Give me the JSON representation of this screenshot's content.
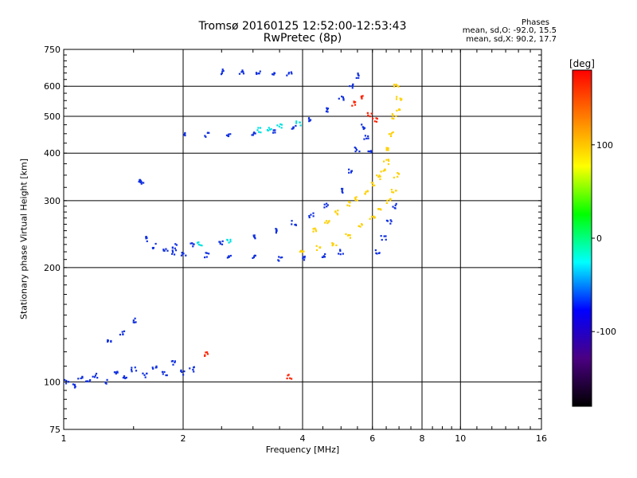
{
  "title": {
    "line1": "Tromsø 20160125 12:52:00-12:53:43",
    "line2": "RwPretec (8p)"
  },
  "stats": {
    "label": "Phases",
    "o_mode": "mean, sd,O: -92.0, 15.5",
    "x_mode": "mean, sd,X:  90.2, 17.7"
  },
  "chart_data": {
    "type": "scatter",
    "title": "Tromsø 20160125 12:52:00-12:53:43",
    "subtitle": "RwPretec (8p)",
    "xlabel": "Frequency [MHz]",
    "ylabel": "Stationary phase Virtual Height [km]",
    "xscale": "log",
    "yscale": "log",
    "xlim": [
      1,
      16
    ],
    "ylim": [
      75,
      750
    ],
    "xticks": [
      1,
      2,
      4,
      6,
      8,
      10,
      16
    ],
    "xgrid": [
      2,
      4,
      6,
      8,
      10
    ],
    "yticks": [
      75,
      100,
      200,
      300,
      400,
      500,
      600,
      750
    ],
    "ygrid": [
      100,
      200,
      300,
      400,
      500,
      600
    ],
    "grid": true,
    "colorbar": {
      "label": "[deg]",
      "range": [
        -180,
        180
      ],
      "ticks": [
        -100,
        0,
        100
      ],
      "colors": [
        "#000000",
        "#4b0082",
        "#0000ff",
        "#00ffff",
        "#00ff00",
        "#ffff00",
        "#ff8000",
        "#ff0000"
      ]
    },
    "series": [
      {
        "label_phase": -100,
        "color": "#1030e0",
        "points": [
          [
            1.02,
            100
          ],
          [
            1.06,
            98
          ],
          [
            1.1,
            102
          ],
          [
            1.15,
            101
          ],
          [
            1.2,
            104
          ],
          [
            1.28,
            100
          ],
          [
            1.35,
            106
          ],
          [
            1.42,
            103
          ],
          [
            1.5,
            108
          ],
          [
            1.6,
            104
          ],
          [
            1.7,
            110
          ],
          [
            1.8,
            105
          ],
          [
            1.9,
            112
          ],
          [
            2.0,
            106
          ],
          [
            2.1,
            108
          ],
          [
            1.3,
            128
          ],
          [
            1.4,
            134
          ],
          [
            1.5,
            145
          ],
          [
            1.55,
            340
          ],
          [
            1.58,
            335
          ],
          [
            1.6,
            238
          ],
          [
            1.7,
            228
          ],
          [
            1.8,
            222
          ],
          [
            1.9,
            219
          ],
          [
            2.0,
            218
          ],
          [
            2.3,
            216
          ],
          [
            2.6,
            213
          ],
          [
            3.0,
            212
          ],
          [
            3.5,
            211
          ],
          [
            4.0,
            212
          ],
          [
            4.5,
            215
          ],
          [
            5.0,
            220
          ],
          [
            1.9,
            228
          ],
          [
            2.1,
            230
          ],
          [
            2.5,
            233
          ],
          [
            3.0,
            242
          ],
          [
            3.4,
            250
          ],
          [
            3.8,
            262
          ],
          [
            4.2,
            275
          ],
          [
            4.6,
            292
          ],
          [
            5.0,
            318
          ],
          [
            5.3,
            360
          ],
          [
            5.5,
            410
          ],
          [
            5.65,
            470
          ],
          [
            5.8,
            440
          ],
          [
            5.9,
            400
          ],
          [
            2.0,
            450
          ],
          [
            2.3,
            448
          ],
          [
            2.6,
            445
          ],
          [
            3.0,
            450
          ],
          [
            3.4,
            458
          ],
          [
            3.8,
            470
          ],
          [
            4.2,
            490
          ],
          [
            4.6,
            520
          ],
          [
            5.0,
            560
          ],
          [
            5.3,
            600
          ],
          [
            5.5,
            640
          ],
          [
            2.5,
            655
          ],
          [
            2.8,
            652
          ],
          [
            3.1,
            650
          ],
          [
            3.4,
            648
          ],
          [
            3.7,
            645
          ],
          [
            6.2,
            220
          ],
          [
            6.4,
            240
          ],
          [
            6.6,
            265
          ],
          [
            6.8,
            290
          ]
        ]
      },
      {
        "label_phase": 100,
        "color": "#ffd000",
        "points": [
          [
            4.3,
            250
          ],
          [
            4.6,
            265
          ],
          [
            4.9,
            280
          ],
          [
            5.2,
            295
          ],
          [
            5.5,
            305
          ],
          [
            5.8,
            315
          ],
          [
            6.0,
            330
          ],
          [
            6.2,
            345
          ],
          [
            6.4,
            360
          ],
          [
            6.5,
            380
          ],
          [
            6.6,
            410
          ],
          [
            6.7,
            450
          ],
          [
            6.8,
            500
          ],
          [
            4.0,
            222
          ],
          [
            4.4,
            225
          ],
          [
            4.8,
            232
          ],
          [
            5.2,
            242
          ],
          [
            5.6,
            258
          ],
          [
            6.0,
            270
          ],
          [
            6.3,
            285
          ],
          [
            6.6,
            300
          ],
          [
            6.8,
            320
          ],
          [
            6.9,
            350
          ],
          [
            7.0,
            520
          ],
          [
            7.0,
            560
          ],
          [
            6.9,
            600
          ]
        ]
      },
      {
        "label_phase": 0,
        "color": "#00e0e0",
        "points": [
          [
            2.2,
            232
          ],
          [
            2.6,
            236
          ],
          [
            3.1,
            460
          ],
          [
            3.3,
            465
          ],
          [
            3.5,
            472
          ],
          [
            3.9,
            480
          ]
        ]
      },
      {
        "label_phase": 180,
        "color": "#ff2000",
        "points": [
          [
            5.4,
            540
          ],
          [
            5.6,
            560
          ],
          [
            5.9,
            505
          ],
          [
            6.1,
            490
          ],
          [
            2.3,
            118
          ],
          [
            3.7,
            103
          ]
        ]
      }
    ]
  }
}
